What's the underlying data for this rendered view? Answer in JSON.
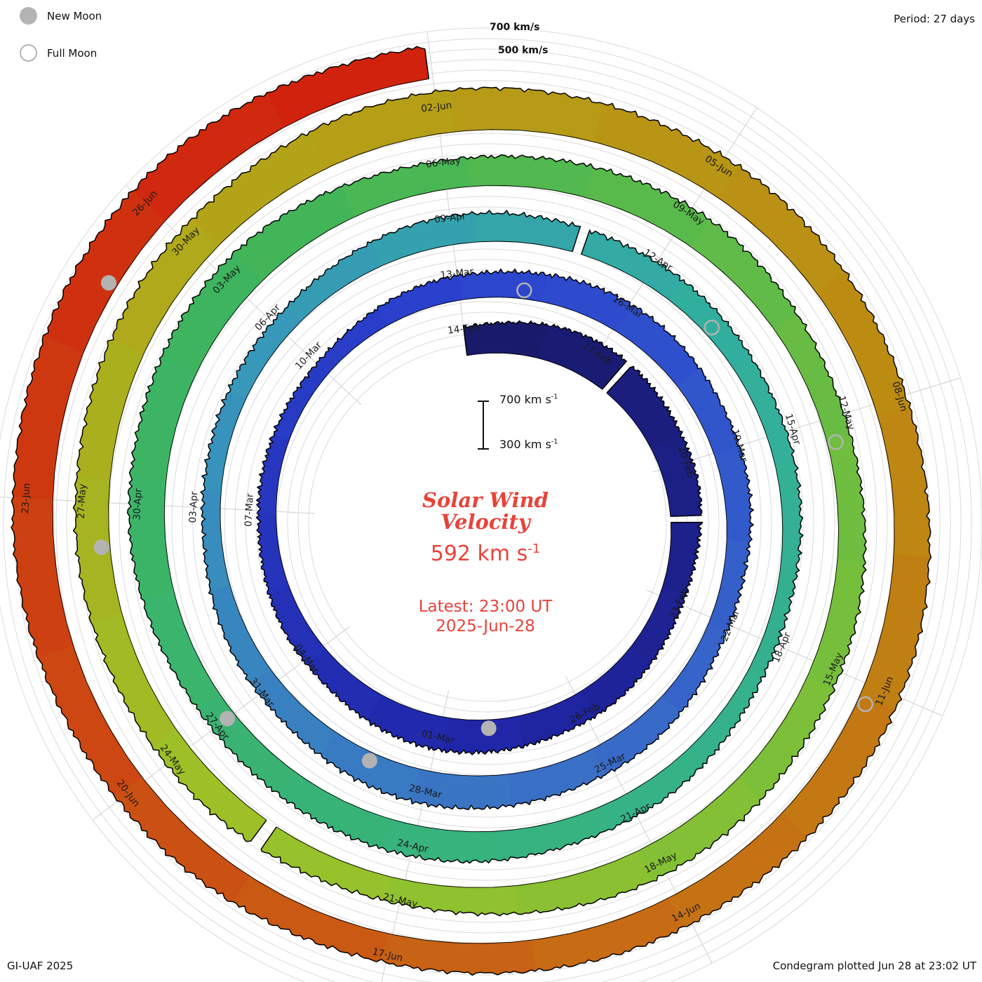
{
  "colors": {
    "accent": "#e8433a",
    "moon_gray": "#b3b3b3"
  },
  "legend": {
    "new_moon": "New Moon",
    "full_moon": "Full Moon"
  },
  "header": {
    "period_label": "Period: 27 days"
  },
  "top_scale_labels": {
    "outer": "700 km/s",
    "inner": "500 km/s"
  },
  "center": {
    "scale_top": "700 km s",
    "scale_top_exp": "-1",
    "scale_bottom": "300 km s",
    "scale_bottom_exp": "-1",
    "title_line1": "Solar Wind",
    "title_line2": "Velocity",
    "current_value": "592 km s",
    "current_exp": "-1",
    "latest_line1": "Latest: 23:00 UT",
    "latest_line2": "2025-Jun-28"
  },
  "footer": {
    "left": "GI-UAF 2025",
    "right": "Condegram plotted Jun 28 at 23:02 UT"
  },
  "chart_data": {
    "type": "spiral-polar-condegram",
    "title": "Solar Wind Velocity",
    "period_days": 27,
    "start_date": "2025-Feb-14",
    "end_date": "2025-Jun-28",
    "latest": {
      "value_km_s": 592,
      "time": "23:00 UT",
      "date": "2025-Jun-28"
    },
    "scale": {
      "min": 300,
      "max": 700,
      "units": "km/s"
    },
    "grid": {
      "radial_spokes_deg": 40,
      "circle_step_km_s": 100
    },
    "samples": [
      {
        "t": 0,
        "date": "14-Feb",
        "v": 560
      },
      {
        "t": 3,
        "date": "17-Feb",
        "v": 640
      },
      {
        "t": 6,
        "date": "20-Feb",
        "v": 600
      },
      {
        "t": 9,
        "date": "23-Feb",
        "v": 520
      },
      {
        "t": 12,
        "date": "26-Feb",
        "v": 560
      },
      {
        "t": 15,
        "date": "01-Mar",
        "v": 600
      },
      {
        "t": 18,
        "date": "04-Mar",
        "v": 520
      },
      {
        "t": 21,
        "date": "07-Mar",
        "v": 460
      },
      {
        "t": 24,
        "date": "10-Mar",
        "v": 440
      },
      {
        "t": 27,
        "date": "13-Mar",
        "v": 520
      },
      {
        "t": 30,
        "date": "16-Mar",
        "v": 580
      },
      {
        "t": 33,
        "date": "19-Mar",
        "v": 540
      },
      {
        "t": 36,
        "date": "22-Mar",
        "v": 480
      },
      {
        "t": 39,
        "date": "25-Mar",
        "v": 560
      },
      {
        "t": 42,
        "date": "28-Mar",
        "v": 600
      },
      {
        "t": 45,
        "date": "31-Mar",
        "v": 520
      },
      {
        "t": 48,
        "date": "03-Apr",
        "v": 460
      },
      {
        "t": 51,
        "date": "06-Apr",
        "v": 480
      },
      {
        "t": 54,
        "date": "09-Apr",
        "v": 560
      },
      {
        "t": 57,
        "date": "12-Apr",
        "v": 520
      },
      {
        "t": 60,
        "date": "15-Apr",
        "v": 480
      },
      {
        "t": 63,
        "date": "18-Apr",
        "v": 440
      },
      {
        "t": 66,
        "date": "21-Apr",
        "v": 520
      },
      {
        "t": 69,
        "date": "24-Apr",
        "v": 580
      },
      {
        "t": 72,
        "date": "27-Apr",
        "v": 540
      },
      {
        "t": 75,
        "date": "30-Apr",
        "v": 620
      },
      {
        "t": 78,
        "date": "03-May",
        "v": 660
      },
      {
        "t": 81,
        "date": "06-May",
        "v": 560
      },
      {
        "t": 84,
        "date": "09-May",
        "v": 600
      },
      {
        "t": 87,
        "date": "12-May",
        "v": 520
      },
      {
        "t": 90,
        "date": "15-May",
        "v": 560
      },
      {
        "t": 93,
        "date": "18-May",
        "v": 600
      },
      {
        "t": 96,
        "date": "21-May",
        "v": 520
      },
      {
        "t": 99,
        "date": "24-May",
        "v": 560
      },
      {
        "t": 102,
        "date": "27-May",
        "v": 600
      },
      {
        "t": 105,
        "date": "30-May",
        "v": 640
      },
      {
        "t": 108,
        "date": "02-Jun",
        "v": 680
      },
      {
        "t": 111,
        "date": "05-Jun",
        "v": 640
      },
      {
        "t": 114,
        "date": "08-Jun",
        "v": 600
      },
      {
        "t": 117,
        "date": "11-Jun",
        "v": 640
      },
      {
        "t": 120,
        "date": "14-Jun",
        "v": 600
      },
      {
        "t": 123,
        "date": "17-Jun",
        "v": 560
      },
      {
        "t": 126,
        "date": "20-Jun",
        "v": 600
      },
      {
        "t": 129,
        "date": "23-Jun",
        "v": 660
      },
      {
        "t": 132,
        "date": "26-Jun",
        "v": 700
      },
      {
        "t": 134.96,
        "date": "28-Jun",
        "v": 592
      }
    ],
    "data_gaps_days": [
      3.65,
      7.2,
      55.9,
      97.7
    ],
    "moons": {
      "new": [
        {
          "t": 14,
          "date": "28-Feb"
        },
        {
          "t": 43,
          "date": "29-Mar"
        },
        {
          "t": 72,
          "date": "27-Apr"
        },
        {
          "t": 101.5,
          "date": "26-May"
        },
        {
          "t": 131.2,
          "date": "25-Jun"
        }
      ],
      "full": [
        {
          "t": 28.2,
          "date": "14-Mar"
        },
        {
          "t": 58.2,
          "date": "13-Apr"
        },
        {
          "t": 87.3,
          "date": "12-May"
        },
        {
          "t": 117.2,
          "date": "11-Jun"
        }
      ]
    },
    "colormap": [
      {
        "t": 0,
        "color": "#191a66"
      },
      {
        "t": 14,
        "color": "#2026a8"
      },
      {
        "t": 27,
        "color": "#2b43cf"
      },
      {
        "t": 40,
        "color": "#3a6fc6"
      },
      {
        "t": 50,
        "color": "#3796bb"
      },
      {
        "t": 58,
        "color": "#32ae9f"
      },
      {
        "t": 68,
        "color": "#37b37f"
      },
      {
        "t": 78,
        "color": "#3eb45c"
      },
      {
        "t": 88,
        "color": "#6fbe3f"
      },
      {
        "t": 98,
        "color": "#9cc228"
      },
      {
        "t": 106,
        "color": "#b3a318"
      },
      {
        "t": 114,
        "color": "#bd8a12"
      },
      {
        "t": 121,
        "color": "#c76a14"
      },
      {
        "t": 127,
        "color": "#cc4612"
      },
      {
        "t": 135,
        "color": "#d21e0e"
      }
    ]
  }
}
